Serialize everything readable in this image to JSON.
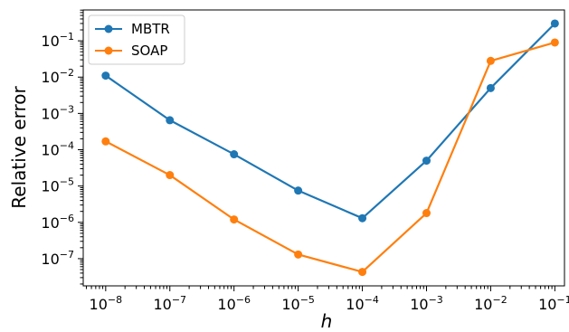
{
  "chart_data": {
    "type": "line",
    "x_scale": "log",
    "y_scale": "log",
    "x": [
      "1e-8",
      "1e-7",
      "1e-6",
      "1e-5",
      "1e-4",
      "1e-3",
      "1e-2",
      "1e-1"
    ],
    "x_tick_labels": [
      {
        "base": "10",
        "exp": "−8"
      },
      {
        "base": "10",
        "exp": "−7"
      },
      {
        "base": "10",
        "exp": "−6"
      },
      {
        "base": "10",
        "exp": "−5"
      },
      {
        "base": "10",
        "exp": "−4"
      },
      {
        "base": "10",
        "exp": "−3"
      },
      {
        "base": "10",
        "exp": "−2"
      },
      {
        "base": "10",
        "exp": "−1"
      }
    ],
    "y_tick_labels": [
      {
        "base": "10",
        "exp": "−7"
      },
      {
        "base": "10",
        "exp": "−6"
      },
      {
        "base": "10",
        "exp": "−5"
      },
      {
        "base": "10",
        "exp": "−4"
      },
      {
        "base": "10",
        "exp": "−3"
      },
      {
        "base": "10",
        "exp": "−2"
      },
      {
        "base": "10",
        "exp": "−1"
      }
    ],
    "xlabel": "h",
    "ylabel": "Relative error",
    "xlim_log10": [
      -8.35,
      -0.85
    ],
    "ylim_log10": [
      -7.75,
      -0.15
    ],
    "grid": false,
    "legend_position": "top-left",
    "series": [
      {
        "name": "MBTR",
        "color": "#1f77b4",
        "values": [
          0.011,
          0.00065,
          7.5e-05,
          7.5e-06,
          1.3e-06,
          5e-05,
          0.005,
          0.3
        ]
      },
      {
        "name": "SOAP",
        "color": "#ff7f0e",
        "values": [
          0.00017,
          2e-05,
          1.2e-06,
          1.3e-07,
          4.3e-08,
          1.8e-06,
          0.028,
          0.09
        ]
      }
    ]
  }
}
